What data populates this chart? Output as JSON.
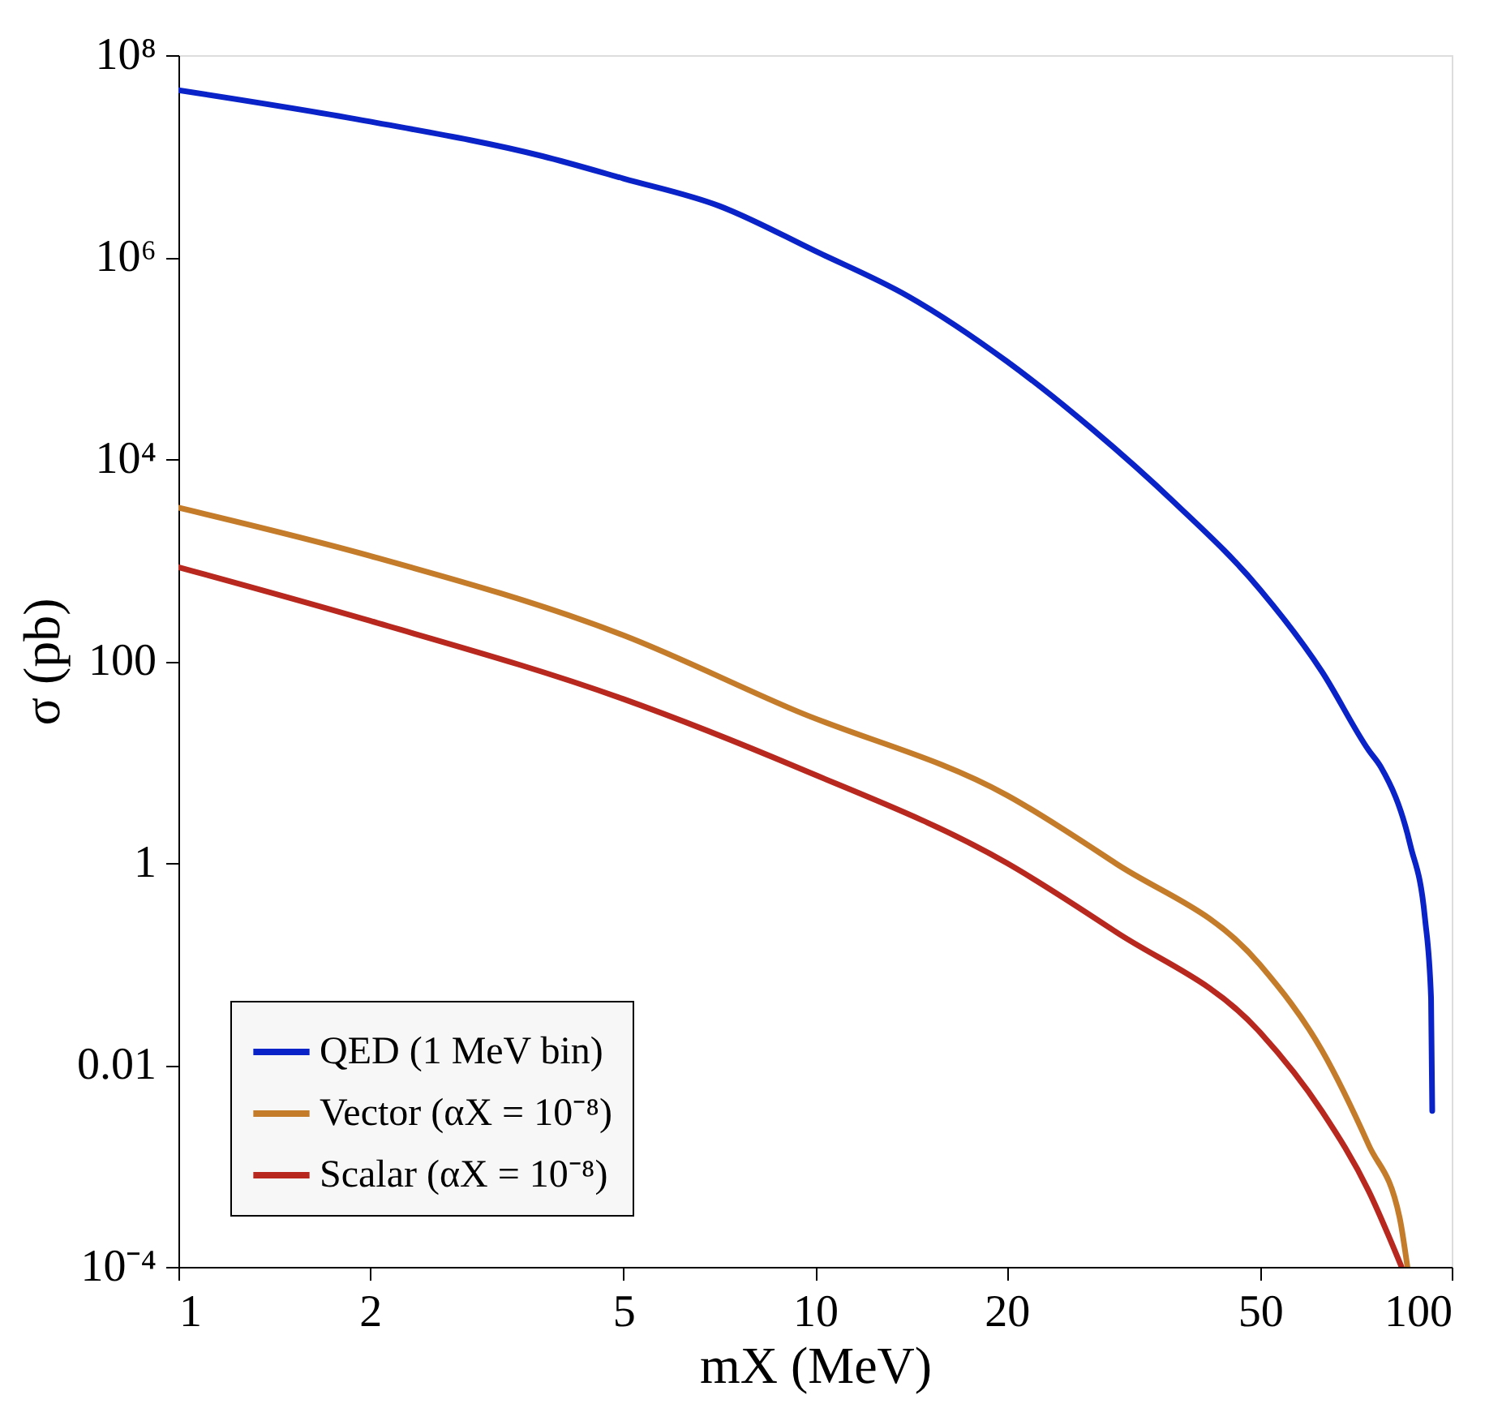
{
  "chart_data": {
    "type": "line",
    "xlabel": "mX (MeV)",
    "ylabel": "σ (pb)",
    "log": "xy",
    "grid": false,
    "legend": "bottom left",
    "line_style": "solid",
    "marker": "none",
    "xlim": [
      1,
      100
    ],
    "xticks": [
      1,
      2,
      5,
      10,
      20,
      50,
      100
    ],
    "ylim": [
      0.0001,
      100000000
    ],
    "yticks": [
      {
        "value": 0.0001,
        "label": "10⁻⁴"
      },
      0.01,
      1,
      100,
      {
        "value": 10000,
        "label": "10⁴"
      },
      {
        "value": 1000000,
        "label": "10⁶"
      },
      {
        "value": 100000000,
        "label": "10⁸"
      }
    ],
    "series": [
      {
        "name": "QED (1 MeV bin)",
        "color": "#0a23c8",
        "x": [
          1,
          2,
          3.73,
          5,
          7.08,
          10,
          14,
          20,
          27.2,
          36.7,
          50,
          62.5,
          74.1,
          77.4,
          86.1,
          90.8,
          92.8,
          93.2
        ],
        "values": [
          45000000,
          22000000,
          10000000,
          6000000,
          3200000,
          1150000,
          410000,
          93000,
          20000,
          3700,
          510,
          79,
          13,
          8.9,
          1.5,
          0.28,
          0.046,
          0.0035
        ]
      },
      {
        "name": "Vector (αX = 10⁻⁸)",
        "color": "#c47c2a",
        "x": [
          1,
          2,
          5,
          9.35,
          20,
          29.6,
          50,
          62.5,
          74.1,
          82.8,
          85.2
        ],
        "values": [
          3300,
          1100,
          180,
          32,
          4.7,
          1.0,
          0.098,
          0.014,
          0.0016,
          0.00031,
          0.0001
        ]
      },
      {
        "name": "Scalar (αX = 10⁻⁸)",
        "color": "#b8281e",
        "x": [
          1,
          2,
          5,
          9.35,
          20,
          29.6,
          50,
          62.5,
          74.1,
          83.4
        ],
        "values": [
          850,
          250,
          42,
          8.9,
          1.0,
          0.21,
          0.021,
          0.0035,
          0.00056,
          0.0001
        ]
      }
    ]
  }
}
